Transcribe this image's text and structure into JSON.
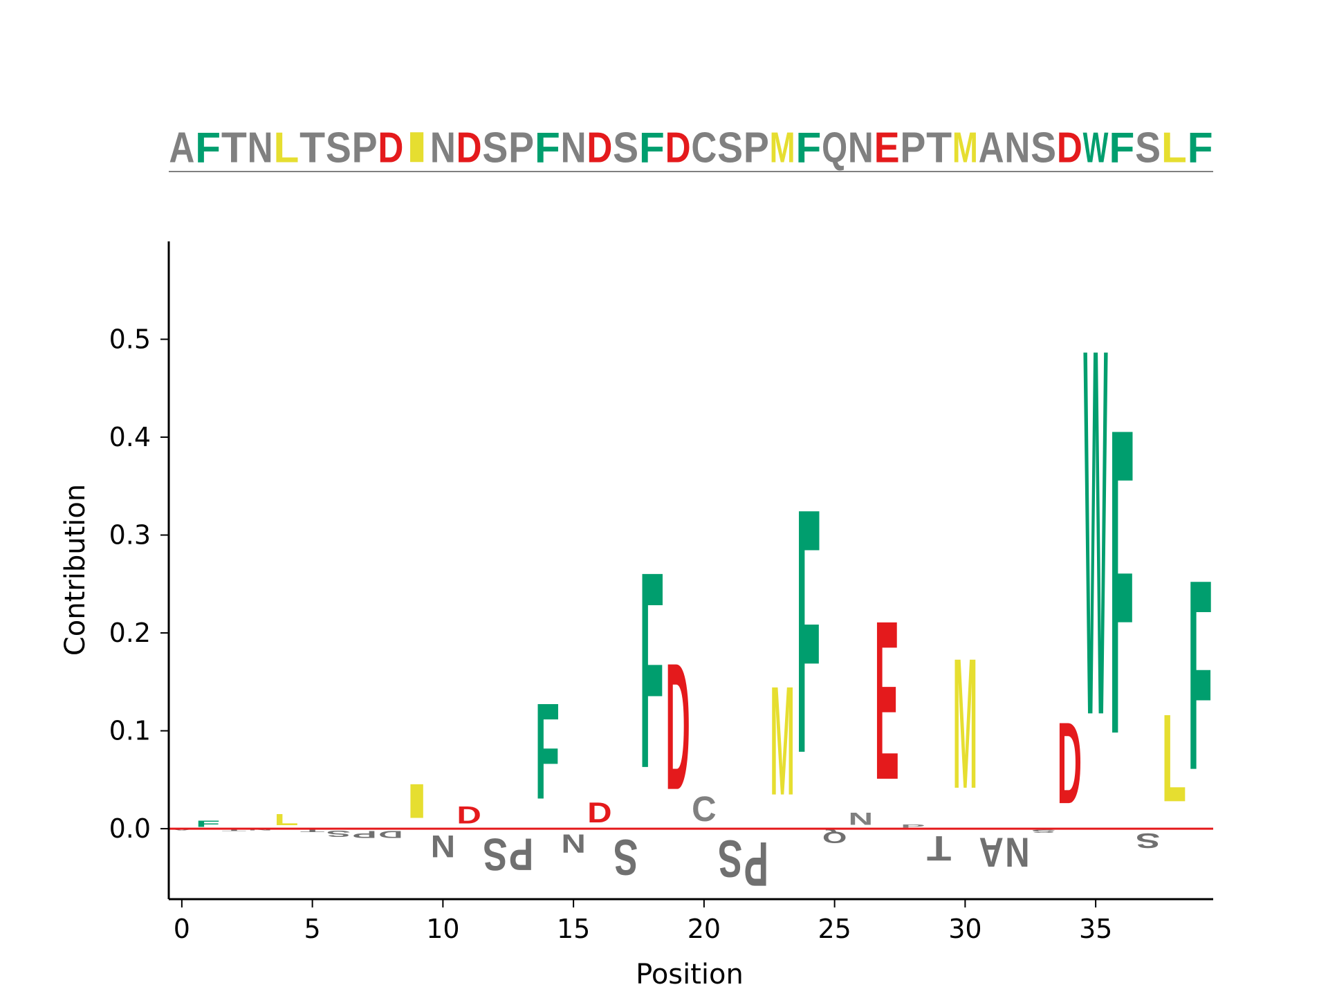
{
  "chart_data": {
    "type": "logo",
    "sequence": "AFTNLTSPDINDSPFNDSFDCSPMFQNEPTMANSDWFSLF",
    "positions": [
      0,
      1,
      2,
      3,
      4,
      5,
      6,
      7,
      8,
      9,
      10,
      11,
      12,
      13,
      14,
      15,
      16,
      17,
      18,
      19,
      20,
      21,
      22,
      23,
      24,
      25,
      26,
      27,
      28,
      29,
      30,
      31,
      32,
      33,
      34,
      35,
      36,
      37,
      38,
      39
    ],
    "contributions": [
      -0.002,
      0.01,
      -0.003,
      -0.002,
      0.018,
      -0.004,
      -0.01,
      -0.012,
      -0.012,
      0.056,
      -0.036,
      0.028,
      -0.052,
      -0.052,
      0.157,
      -0.03,
      0.033,
      -0.058,
      0.321,
      0.207,
      0.04,
      -0.06,
      -0.072,
      0.178,
      0.4,
      -0.018,
      0.02,
      0.26,
      0.005,
      -0.04,
      0.213,
      -0.048,
      -0.048,
      -0.005,
      0.133,
      0.6,
      0.5,
      -0.024,
      0.143,
      0.311
    ],
    "xlabel": "Position",
    "ylabel": "Contribution",
    "xticks": [
      0,
      5,
      10,
      15,
      20,
      25,
      30,
      35
    ],
    "yticks": [
      "0.0",
      "0.1",
      "0.2",
      "0.3",
      "0.4",
      "0.5"
    ],
    "xlim": [
      -0.5,
      39.5
    ],
    "ylim": [
      -0.072,
      0.6
    ],
    "colors": {
      "F": "#009e6e",
      "W": "#009e6e",
      "D": "#e41a1c",
      "E": "#e41a1c",
      "L": "#e6de30",
      "I": "#e6de30",
      "M": "#e6de30",
      "other": "#808080",
      "zero_line": "#e41a1c"
    },
    "negative_letter_color": "#707070"
  }
}
